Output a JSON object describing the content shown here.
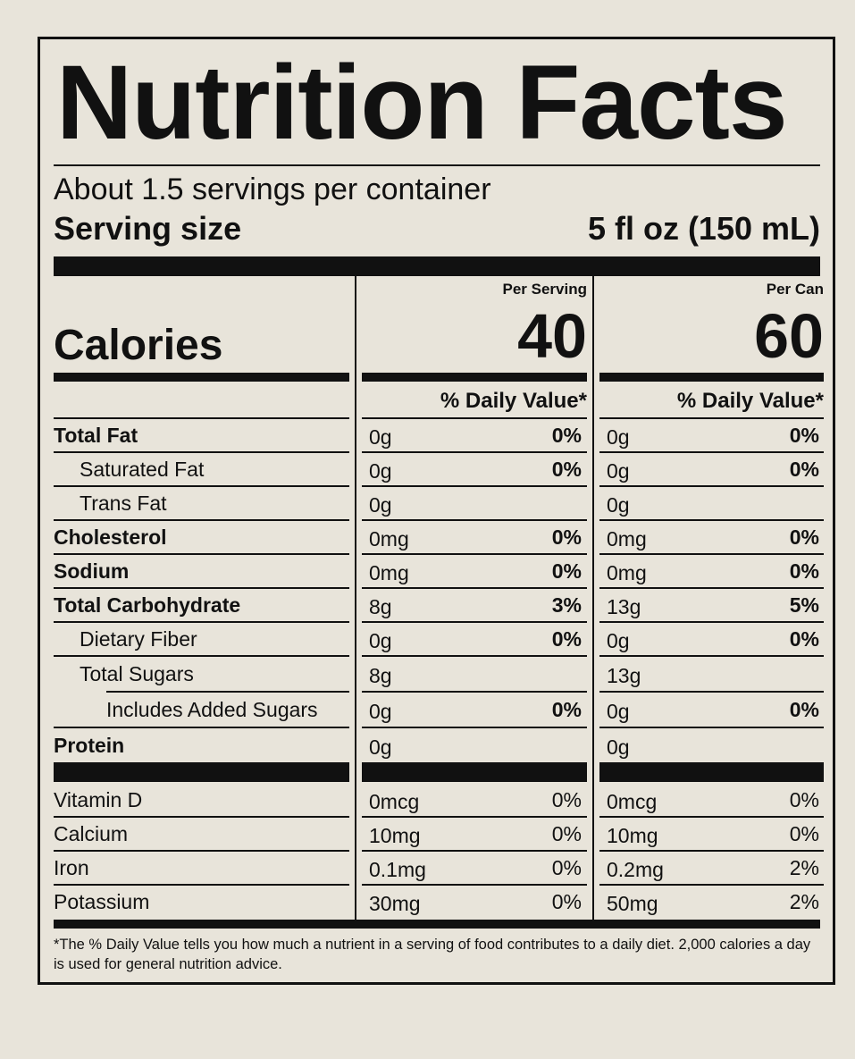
{
  "title": "Nutrition Facts",
  "servings_per_container": "About 1.5 servings per container",
  "serving_size": {
    "label": "Serving size",
    "value": "5 fl oz (150 mL)"
  },
  "calories": {
    "label": "Calories",
    "per_serving_header": "Per Serving",
    "per_serving_value": "40",
    "per_can_header": "Per Can",
    "per_can_value": "60"
  },
  "daily_value_header": "% Daily Value*",
  "nutrients": [
    {
      "name": "Total Fat",
      "bold": true,
      "indent": 0,
      "serving_amount": "0g",
      "serving_dv": "0%",
      "can_amount": "0g",
      "can_dv": "0%"
    },
    {
      "name": "Saturated Fat",
      "bold": false,
      "indent": 1,
      "serving_amount": "0g",
      "serving_dv": "0%",
      "can_amount": "0g",
      "can_dv": "0%"
    },
    {
      "name": "Trans Fat",
      "bold": false,
      "indent": 1,
      "serving_amount": "0g",
      "serving_dv": "",
      "can_amount": "0g",
      "can_dv": ""
    },
    {
      "name": "Cholesterol",
      "bold": true,
      "indent": 0,
      "serving_amount": "0mg",
      "serving_dv": "0%",
      "can_amount": "0mg",
      "can_dv": "0%"
    },
    {
      "name": "Sodium",
      "bold": true,
      "indent": 0,
      "serving_amount": "0mg",
      "serving_dv": "0%",
      "can_amount": "0mg",
      "can_dv": "0%"
    },
    {
      "name": "Total Carbohydrate",
      "bold": true,
      "indent": 0,
      "serving_amount": "8g",
      "serving_dv": "3%",
      "can_amount": "13g",
      "can_dv": "5%"
    },
    {
      "name": "Dietary Fiber",
      "bold": false,
      "indent": 1,
      "serving_amount": "0g",
      "serving_dv": "0%",
      "can_amount": "0g",
      "can_dv": "0%"
    },
    {
      "name": "Total Sugars",
      "bold": false,
      "indent": 1,
      "serving_amount": "8g",
      "serving_dv": "",
      "can_amount": "13g",
      "can_dv": ""
    },
    {
      "name": "Includes Added Sugars",
      "bold": false,
      "indent": 2,
      "serving_amount": "0g",
      "serving_dv": "0%",
      "can_amount": "0g",
      "can_dv": "0%"
    },
    {
      "name": "Protein",
      "bold": true,
      "indent": 0,
      "serving_amount": "0g",
      "serving_dv": "",
      "can_amount": "0g",
      "can_dv": ""
    }
  ],
  "vitamins": [
    {
      "name": "Vitamin D",
      "serving_amount": "0mcg",
      "serving_dv": "0%",
      "can_amount": "0mcg",
      "can_dv": "0%"
    },
    {
      "name": "Calcium",
      "serving_amount": "10mg",
      "serving_dv": "0%",
      "can_amount": "10mg",
      "can_dv": "0%"
    },
    {
      "name": "Iron",
      "serving_amount": "0.1mg",
      "serving_dv": "0%",
      "can_amount": "0.2mg",
      "can_dv": "2%"
    },
    {
      "name": "Potassium",
      "serving_amount": "30mg",
      "serving_dv": "0%",
      "can_amount": "50mg",
      "can_dv": "2%"
    }
  ],
  "footnote": "*The % Daily Value tells you how much a nutrient in a serving of food contributes to a daily diet. 2,000 calories a day is used for general nutrition advice."
}
